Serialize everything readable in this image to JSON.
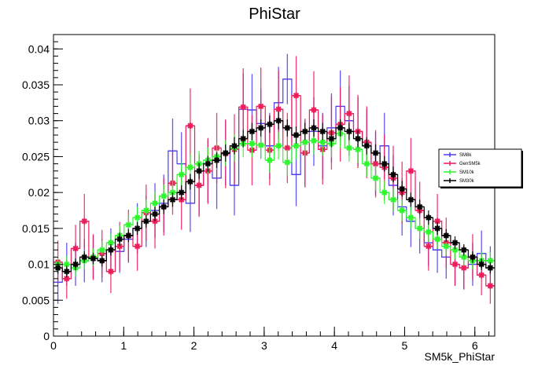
{
  "chart_data": {
    "type": "line",
    "style": "histogram-step-with-error-bars",
    "title": "PhiStar",
    "xlabel": "SM5k_PhiStar",
    "ylabel": "",
    "xlim": [
      0,
      6.283
    ],
    "ylim": [
      0,
      0.042
    ],
    "x_ticks": [
      0,
      1,
      2,
      3,
      4,
      5,
      6
    ],
    "x_tick_labels": [
      "0",
      "1",
      "2",
      "3",
      "4",
      "5",
      "6"
    ],
    "y_ticks": [
      0,
      0.005,
      0.01,
      0.015,
      0.02,
      0.025,
      0.03,
      0.035,
      0.04
    ],
    "y_tick_labels": [
      "0",
      "0.005",
      "0.01",
      "0.015",
      "0.02",
      "0.025",
      "0.03",
      "0.035",
      "0.04"
    ],
    "grid": false,
    "legend_position": "right",
    "bins": 50,
    "series": [
      {
        "name": "SM8k",
        "color": "#4a3cf0",
        "marker": "cross",
        "values": [
          0.0075,
          0.01,
          0.01,
          0.0105,
          0.011,
          0.0105,
          0.012,
          0.0118,
          0.0135,
          0.015,
          0.016,
          0.0175,
          0.0185,
          0.0258,
          0.024,
          0.0185,
          0.021,
          0.023,
          0.022,
          0.0255,
          0.021,
          0.0316,
          0.0315,
          0.0296,
          0.0265,
          0.0325,
          0.0358,
          0.0225,
          0.0255,
          0.0285,
          0.0265,
          0.029,
          0.032,
          0.03,
          0.0285,
          0.027,
          0.024,
          0.0265,
          0.021,
          0.018,
          0.016,
          0.015,
          0.013,
          0.012,
          0.011,
          0.01,
          0.0095,
          0.01,
          0.0115,
          0.0095
        ],
        "errors": [
          0.003,
          0.003,
          0.003,
          0.003,
          0.003,
          0.003,
          0.003,
          0.003,
          0.0033,
          0.0035,
          0.0036,
          0.0038,
          0.004,
          0.0045,
          0.0044,
          0.004,
          0.0042,
          0.0044,
          0.0043,
          0.0045,
          0.0042,
          0.005,
          0.005,
          0.0049,
          0.0046,
          0.005,
          0.0035,
          0.0044,
          0.0046,
          0.0048,
          0.0046,
          0.0048,
          0.005,
          0.0049,
          0.0048,
          0.0046,
          0.0044,
          0.0046,
          0.0042,
          0.004,
          0.0036,
          0.0035,
          0.0033,
          0.0032,
          0.003,
          0.003,
          0.003,
          0.003,
          0.0032,
          0.003
        ]
      },
      {
        "name": "GenSM5k",
        "color": "#ee1c5a",
        "marker": "star",
        "values": [
          0.0103,
          0.008,
          0.0122,
          0.016,
          0.011,
          0.0115,
          0.009,
          0.0125,
          0.014,
          0.0125,
          0.0172,
          0.016,
          0.018,
          0.0213,
          0.019,
          0.0293,
          0.021,
          0.023,
          0.0262,
          0.0254,
          0.026,
          0.0319,
          0.0259,
          0.032,
          0.0259,
          0.0316,
          0.0262,
          0.0335,
          0.0255,
          0.0315,
          0.026,
          0.0283,
          0.0295,
          0.031,
          0.0285,
          0.027,
          0.024,
          0.0235,
          0.022,
          0.02,
          0.023,
          0.0175,
          0.0125,
          0.016,
          0.013,
          0.01,
          0.0095,
          0.011,
          0.0085,
          0.007
        ],
        "errors": [
          0.003,
          0.0028,
          0.0033,
          0.0038,
          0.0032,
          0.0033,
          0.003,
          0.0034,
          0.0036,
          0.0034,
          0.0039,
          0.0038,
          0.004,
          0.0044,
          0.0042,
          0.0052,
          0.0044,
          0.0046,
          0.0049,
          0.0048,
          0.0049,
          0.0054,
          0.0049,
          0.0054,
          0.0049,
          0.0054,
          0.0049,
          0.0055,
          0.0048,
          0.0054,
          0.0049,
          0.0051,
          0.0052,
          0.0053,
          0.0051,
          0.005,
          0.0047,
          0.0046,
          0.0045,
          0.0043,
          0.0046,
          0.004,
          0.0034,
          0.0038,
          0.0035,
          0.003,
          0.003,
          0.0032,
          0.0028,
          0.0025
        ]
      },
      {
        "name": "SM10k",
        "color": "#2ef52e",
        "marker": "star",
        "values": [
          0.01,
          0.01,
          0.0095,
          0.0105,
          0.011,
          0.012,
          0.013,
          0.014,
          0.0155,
          0.0165,
          0.0175,
          0.0185,
          0.0195,
          0.02,
          0.0225,
          0.0235,
          0.024,
          0.0245,
          0.025,
          0.0255,
          0.0262,
          0.0268,
          0.0268,
          0.0266,
          0.0245,
          0.0265,
          0.0242,
          0.0265,
          0.027,
          0.0272,
          0.027,
          0.0268,
          0.0282,
          0.0262,
          0.026,
          0.024,
          0.022,
          0.02,
          0.019,
          0.0175,
          0.0165,
          0.015,
          0.0145,
          0.0135,
          0.0125,
          0.012,
          0.011,
          0.0105,
          0.0105,
          0.0105
        ],
        "errors": [
          0.0012,
          0.0012,
          0.0012,
          0.0012,
          0.0012,
          0.0013,
          0.0013,
          0.0014,
          0.0014,
          0.0015,
          0.0015,
          0.0016,
          0.0016,
          0.0016,
          0.0017,
          0.0018,
          0.0018,
          0.0018,
          0.0018,
          0.0018,
          0.0019,
          0.0019,
          0.0019,
          0.0019,
          0.0018,
          0.0019,
          0.0018,
          0.0019,
          0.0019,
          0.0019,
          0.0019,
          0.0019,
          0.002,
          0.0019,
          0.0019,
          0.0018,
          0.0017,
          0.0016,
          0.0016,
          0.0015,
          0.0015,
          0.0014,
          0.0014,
          0.0013,
          0.0013,
          0.0013,
          0.0012,
          0.0012,
          0.0012,
          0.0012
        ]
      },
      {
        "name": "SM30k",
        "color": "#000000",
        "marker": "star",
        "values": [
          0.0095,
          0.009,
          0.01,
          0.011,
          0.0108,
          0.0105,
          0.012,
          0.0135,
          0.014,
          0.015,
          0.016,
          0.017,
          0.018,
          0.019,
          0.02,
          0.0215,
          0.023,
          0.024,
          0.0245,
          0.0255,
          0.0265,
          0.0275,
          0.0285,
          0.029,
          0.0295,
          0.03,
          0.029,
          0.028,
          0.0285,
          0.029,
          0.0285,
          0.0275,
          0.029,
          0.0285,
          0.0275,
          0.0265,
          0.0255,
          0.024,
          0.0225,
          0.0205,
          0.019,
          0.018,
          0.0165,
          0.015,
          0.014,
          0.013,
          0.012,
          0.011,
          0.01,
          0.0095
        ],
        "errors": [
          0.0008,
          0.0008,
          0.0008,
          0.0008,
          0.0008,
          0.0008,
          0.0008,
          0.0009,
          0.0009,
          0.0009,
          0.0009,
          0.001,
          0.001,
          0.001,
          0.001,
          0.0011,
          0.0011,
          0.0011,
          0.0011,
          0.0012,
          0.0012,
          0.0012,
          0.0012,
          0.0012,
          0.0012,
          0.0012,
          0.0012,
          0.0012,
          0.0012,
          0.0012,
          0.0012,
          0.0012,
          0.0012,
          0.0012,
          0.0012,
          0.0012,
          0.0012,
          0.0011,
          0.0011,
          0.0011,
          0.001,
          0.001,
          0.001,
          0.0009,
          0.0009,
          0.0009,
          0.0008,
          0.0008,
          0.0008,
          0.0008
        ]
      }
    ]
  }
}
